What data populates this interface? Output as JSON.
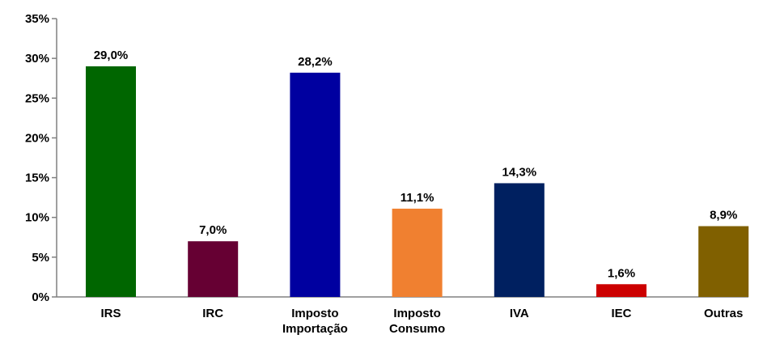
{
  "chart_data": {
    "type": "bar",
    "title": "",
    "xlabel": "",
    "ylabel": "",
    "ylim": [
      0,
      35
    ],
    "yticks": [
      "0%",
      "5%",
      "10%",
      "15%",
      "20%",
      "25%",
      "30%",
      "35%"
    ],
    "ytick_values": [
      0,
      5,
      10,
      15,
      20,
      25,
      30,
      35
    ],
    "grid": false,
    "legend": "none",
    "categories": [
      [
        "IRS"
      ],
      [
        "IRC"
      ],
      [
        "Imposto",
        "Importação"
      ],
      [
        "Imposto",
        "Consumo"
      ],
      [
        "IVA"
      ],
      [
        "IEC"
      ],
      [
        "Outras"
      ]
    ],
    "values": [
      29.0,
      7.0,
      28.2,
      11.1,
      14.3,
      1.6,
      8.9
    ],
    "data_labels": [
      "29,0%",
      "7,0%",
      "28,2%",
      "11,1%",
      "14,3%",
      "1,6%",
      "8,9%"
    ],
    "colors": [
      "#006600",
      "#660033",
      "#0000A0",
      "#F08030",
      "#002060",
      "#CC0000",
      "#806000"
    ]
  }
}
